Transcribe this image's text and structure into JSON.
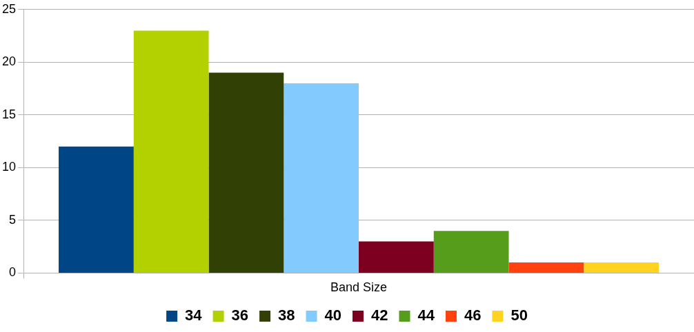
{
  "chart_data": {
    "type": "bar",
    "categories": [
      "Band Size"
    ],
    "series": [
      {
        "name": "34",
        "color": "#004586",
        "values": [
          12
        ]
      },
      {
        "name": "36",
        "color": "#b3d100",
        "values": [
          23
        ]
      },
      {
        "name": "38",
        "color": "#314004",
        "values": [
          19
        ]
      },
      {
        "name": "40",
        "color": "#83caff",
        "values": [
          18
        ]
      },
      {
        "name": "42",
        "color": "#7e0021",
        "values": [
          3
        ]
      },
      {
        "name": "44",
        "color": "#579d1c",
        "values": [
          4
        ]
      },
      {
        "name": "46",
        "color": "#ff420e",
        "values": [
          1
        ]
      },
      {
        "name": "50",
        "color": "#ffd320",
        "values": [
          1
        ]
      }
    ],
    "ylim": [
      0,
      25
    ],
    "yticks": [
      0,
      5,
      10,
      15,
      20,
      25
    ],
    "grid": "y",
    "legend": "bottom"
  }
}
